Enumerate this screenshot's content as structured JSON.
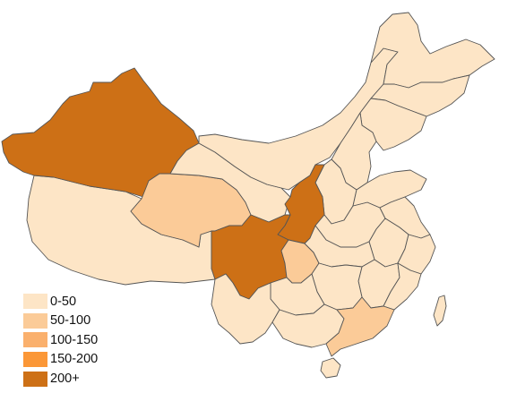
{
  "map": {
    "colors": {
      "0-50": "#fde5c6",
      "50-100": "#fbcb98",
      "100-150": "#fab06d",
      "150-200": "#fb9737",
      "200+": "#cd7016"
    },
    "regions": [
      {
        "name": "Xinjiang",
        "bin": "200+"
      },
      {
        "name": "Tibet",
        "bin": "0-50"
      },
      {
        "name": "Qinghai",
        "bin": "50-100"
      },
      {
        "name": "Gansu",
        "bin": "0-50"
      },
      {
        "name": "Inner Mongolia",
        "bin": "0-50"
      },
      {
        "name": "Ningxia-Shaanxi corridor",
        "bin": "200+"
      },
      {
        "name": "Sichuan",
        "bin": "200+"
      },
      {
        "name": "Chongqing",
        "bin": "50-100"
      },
      {
        "name": "Guangdong",
        "bin": "50-100"
      },
      {
        "name": "Yunnan",
        "bin": "0-50"
      },
      {
        "name": "Guangxi",
        "bin": "0-50"
      },
      {
        "name": "Guizhou",
        "bin": "0-50"
      },
      {
        "name": "Hunan",
        "bin": "0-50"
      },
      {
        "name": "Heilongjiang",
        "bin": "0-50"
      },
      {
        "name": "Jilin",
        "bin": "0-50"
      },
      {
        "name": "Liaoning",
        "bin": "0-50"
      },
      {
        "name": "Hebei",
        "bin": "0-50"
      },
      {
        "name": "Shanxi",
        "bin": "0-50"
      },
      {
        "name": "Shandong",
        "bin": "0-50"
      },
      {
        "name": "Henan",
        "bin": "0-50"
      },
      {
        "name": "Hubei",
        "bin": "0-50"
      },
      {
        "name": "Anhui",
        "bin": "0-50"
      },
      {
        "name": "Jiangsu",
        "bin": "0-50"
      },
      {
        "name": "Zhejiang",
        "bin": "0-50"
      },
      {
        "name": "Jiangxi",
        "bin": "0-50"
      },
      {
        "name": "Fujian",
        "bin": "0-50"
      },
      {
        "name": "Taiwan",
        "bin": "0-50"
      },
      {
        "name": "Hainan",
        "bin": "0-50"
      }
    ]
  },
  "legend": {
    "items": [
      {
        "label": "0-50",
        "color": "#fde5c6"
      },
      {
        "label": "50-100",
        "color": "#fbcb98"
      },
      {
        "label": "100-150",
        "color": "#fab06d"
      },
      {
        "label": "150-200",
        "color": "#fb9737"
      },
      {
        "label": "200+",
        "color": "#cd7016"
      }
    ]
  }
}
